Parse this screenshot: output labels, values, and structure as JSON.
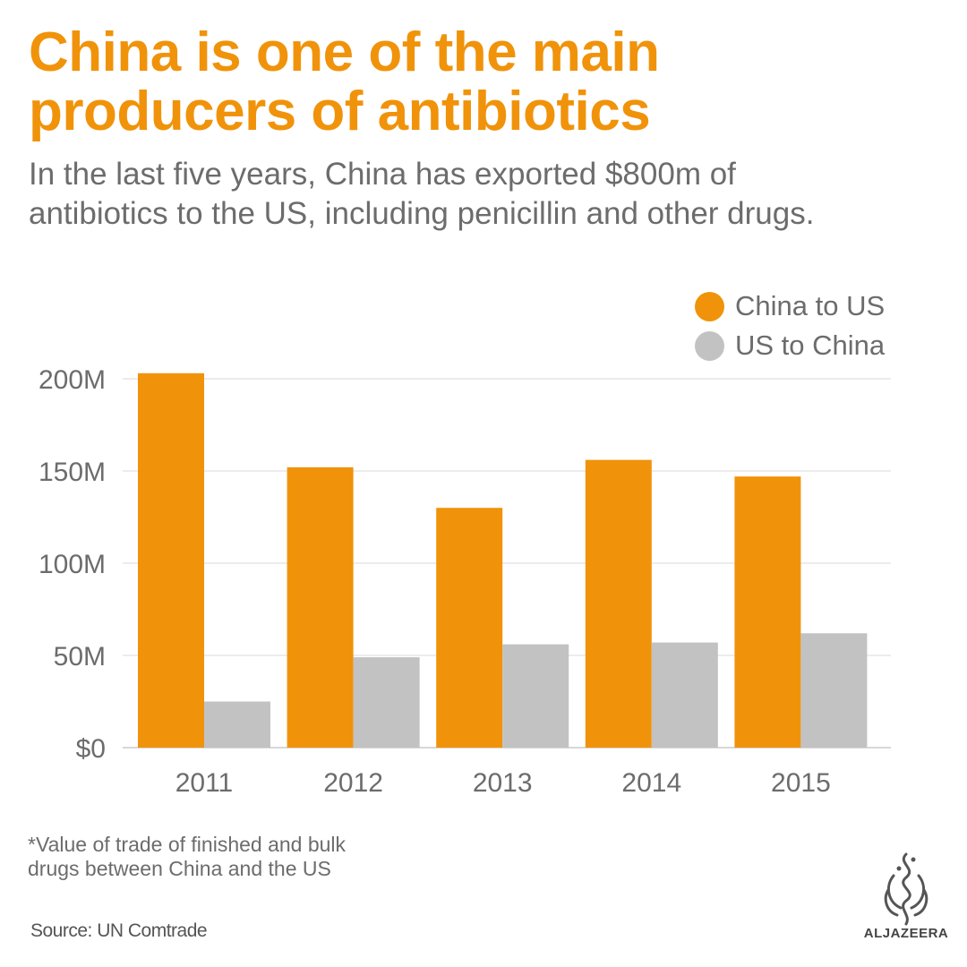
{
  "title_lines": [
    "China is one of the main",
    "producers of antibiotics"
  ],
  "subtitle_lines": [
    "In the last five years, China has exported $800m of",
    "antibiotics to the US, including penicillin and other drugs."
  ],
  "note_lines": [
    "*Value of trade of finished and bulk",
    "drugs between China and the US"
  ],
  "source": "Source:  UN Comtrade",
  "logo_text": "ALJAZEERA",
  "colors": {
    "china_to_us": "#f0930a",
    "us_to_china": "#c2c2c3",
    "text": "#6c6c6c",
    "grid": "#e6e6e6"
  },
  "chart_data": {
    "type": "bar",
    "categories": [
      "2011",
      "2012",
      "2013",
      "2014",
      "2015"
    ],
    "series": [
      {
        "name": "China to US",
        "values": [
          203,
          152,
          130,
          156,
          147
        ]
      },
      {
        "name": "US to China",
        "values": [
          25,
          49,
          56,
          57,
          62
        ]
      }
    ],
    "yticks": [
      0,
      50,
      100,
      150,
      200
    ],
    "ytick_labels": [
      "$0",
      "50M",
      "100M",
      "150M",
      "200M"
    ],
    "ylim": [
      0,
      200
    ],
    "grid": true,
    "legend_position": "top-right"
  }
}
